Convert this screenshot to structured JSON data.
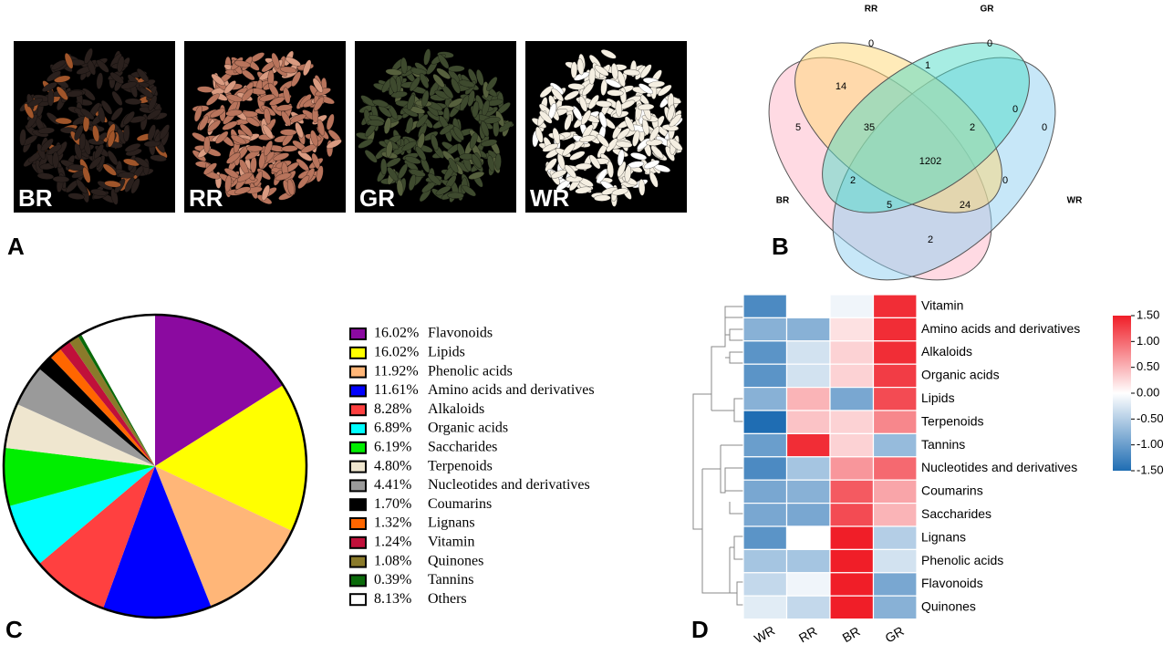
{
  "panel_labels": [
    "A",
    "B",
    "C",
    "D"
  ],
  "photos": {
    "labels": [
      "BR",
      "RR",
      "GR",
      "WR"
    ]
  },
  "chart_data": [
    {
      "type": "venn",
      "sets": [
        "RR",
        "GR",
        "BR",
        "WR"
      ],
      "values": [
        0,
        0,
        1,
        14,
        0,
        5,
        35,
        2,
        0,
        1202,
        2,
        0,
        5,
        24,
        2
      ],
      "colors": [
        "#ffd873",
        "#4fdcc8",
        "#ffb6c8",
        "#8fd0f2"
      ]
    },
    {
      "type": "pie",
      "categories": [
        "Flavonoids",
        "Lipids",
        "Phenolic acids",
        "Amino acids and derivatives",
        "Alkaloids",
        "Organic acids",
        "Saccharides",
        "Terpenoids",
        "Nucleotides and derivatives",
        "Coumarins",
        "Lignans",
        "Vitamin",
        "Quinones",
        "Tannins",
        "Others"
      ],
      "values": [
        16.02,
        16.02,
        11.92,
        11.61,
        8.28,
        6.89,
        6.19,
        4.8,
        4.41,
        1.7,
        1.32,
        1.24,
        1.08,
        0.39,
        8.13
      ],
      "value_labels": [
        "16.02%",
        "16.02%",
        "11.92%",
        "11.61%",
        "8.28%",
        "6.89%",
        "6.19%",
        "4.80%",
        "4.41%",
        "1.70%",
        "1.32%",
        "1.24%",
        "1.08%",
        "0.39%",
        "8.13%"
      ],
      "colors": [
        "#8b0aa0",
        "#ffff00",
        "#ffb678",
        "#0000ff",
        "#ff4040",
        "#00ffff",
        "#00ee00",
        "#efe6cf",
        "#9a9a9a",
        "#000000",
        "#ff6600",
        "#c0103a",
        "#8a7a2a",
        "#0a6a0a",
        "#ffffff"
      ]
    },
    {
      "type": "heatmap",
      "x": [
        "WR",
        "RR",
        "BR",
        "GR"
      ],
      "y": [
        "Vitamin",
        "Amino acids and derivatives",
        "Alkaloids",
        "Organic acids",
        "Lipids",
        "Terpenoids",
        "Tannins",
        "Nucleotides and derivatives",
        "Coumarins",
        "Saccharides",
        "Lignans",
        "Phenolic acids",
        "Flavonoids",
        "Quinones"
      ],
      "values": [
        [
          -1.2,
          0.0,
          -0.1,
          1.4
        ],
        [
          -0.8,
          -0.8,
          0.2,
          1.4
        ],
        [
          -1.1,
          -0.3,
          0.3,
          1.4
        ],
        [
          -1.1,
          -0.3,
          0.3,
          1.3
        ],
        [
          -0.8,
          0.5,
          -0.9,
          1.2
        ],
        [
          -1.5,
          0.4,
          0.3,
          0.8
        ],
        [
          -1.0,
          1.4,
          0.3,
          -0.7
        ],
        [
          -1.2,
          -0.6,
          0.7,
          1.0
        ],
        [
          -0.9,
          -0.8,
          1.1,
          0.6
        ],
        [
          -0.9,
          -0.9,
          1.2,
          0.5
        ],
        [
          -1.1,
          0.0,
          1.5,
          -0.5
        ],
        [
          -0.6,
          -0.6,
          1.5,
          -0.3
        ],
        [
          -0.4,
          -0.1,
          1.5,
          -0.9
        ],
        [
          -0.2,
          -0.4,
          1.5,
          -0.8
        ]
      ],
      "zlim": [
        -1.5,
        1.5
      ],
      "zticks": [
        {
          "value": 1.5,
          "label": "1.50"
        },
        {
          "value": 1.0,
          "label": "1.00"
        },
        {
          "value": 0.5,
          "label": "0.50"
        },
        {
          "value": 0.0,
          "label": "0.00"
        },
        {
          "value": -0.5,
          "label": "-0.50"
        },
        {
          "value": -1.0,
          "label": "-1.00"
        },
        {
          "value": -1.5,
          "label": "-1.50"
        }
      ],
      "colormap": [
        "#1f6db3",
        "#ffffff",
        "#f01e28"
      ]
    }
  ]
}
